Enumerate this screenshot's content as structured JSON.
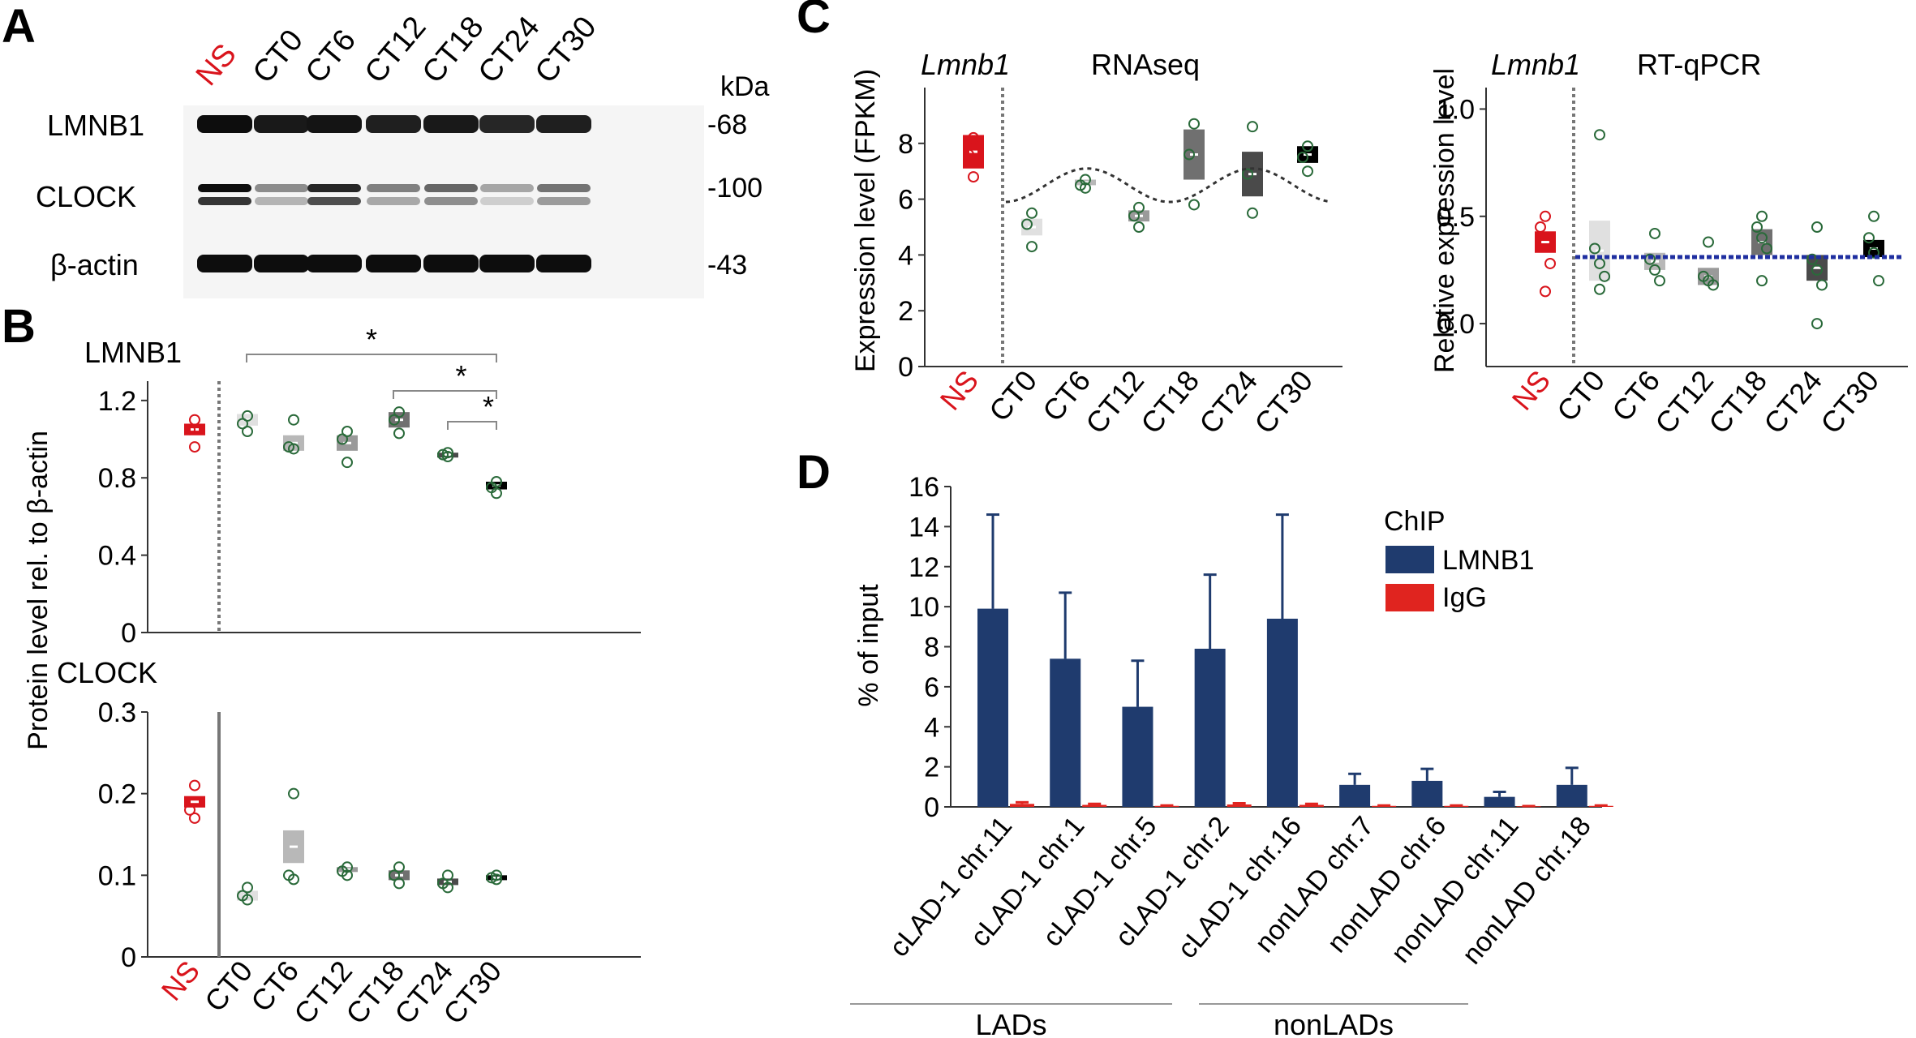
{
  "panels": {
    "A": "A",
    "B": "B",
    "C": "C",
    "D": "D"
  },
  "colors": {
    "ns_red": "#d9141c",
    "navy": "#1f3b6e",
    "igg_red": "#e0241f",
    "blue_dotted": "#1f2fa0",
    "axis": "#333333"
  },
  "western": {
    "lanes": [
      "NS",
      "CT0",
      "CT6",
      "CT12",
      "CT18",
      "CT24",
      "CT30"
    ],
    "unit_label": "kDa",
    "rows": [
      {
        "name": "LMNB1",
        "kda": "-68",
        "intensity": [
          0.95,
          0.9,
          0.92,
          0.88,
          0.9,
          0.85,
          0.88
        ]
      },
      {
        "name": "CLOCK",
        "kda": "-100",
        "intensity": [
          0.95,
          0.45,
          0.85,
          0.5,
          0.6,
          0.35,
          0.55
        ]
      },
      {
        "name": "β-actin",
        "kda": "-43",
        "intensity": [
          0.95,
          0.95,
          0.95,
          0.95,
          0.95,
          0.95,
          0.95
        ]
      }
    ]
  },
  "shared_y_label": "Protein level rel. to β-actin",
  "chart_data": [
    {
      "id": "B-top",
      "type": "bar",
      "title": "LMNB1",
      "categories": [
        "NS",
        "CT0",
        "CT6",
        "CT12",
        "CT18",
        "CT24",
        "CT30"
      ],
      "values": [
        1.05,
        1.1,
        0.98,
        0.98,
        1.1,
        0.92,
        0.76
      ],
      "errors": [
        0.03,
        0.03,
        0.04,
        0.04,
        0.04,
        0.01,
        0.02
      ],
      "points": [
        [
          1.1,
          1.05,
          0.96
        ],
        [
          1.12,
          1.08,
          1.04
        ],
        [
          1.1,
          0.96,
          0.95
        ],
        [
          1.04,
          1.0,
          0.88
        ],
        [
          1.14,
          1.1,
          1.03
        ],
        [
          0.93,
          0.92,
          0.91
        ],
        [
          0.78,
          0.75,
          0.72
        ]
      ],
      "yticks": [
        "0",
        "0.4",
        "0.8",
        "1.2"
      ],
      "ylim": [
        0,
        1.3
      ],
      "annotations": [
        "*",
        "*",
        "*"
      ]
    },
    {
      "id": "B-bottom",
      "type": "bar",
      "title": "CLOCK",
      "categories": [
        "NS",
        "CT0",
        "CT6",
        "CT12",
        "CT18",
        "CT24",
        "CT30"
      ],
      "values": [
        0.19,
        0.075,
        0.135,
        0.107,
        0.1,
        0.092,
        0.097
      ],
      "errors": [
        0.007,
        0.006,
        0.02,
        0.003,
        0.006,
        0.004,
        0.003
      ],
      "points": [
        [
          0.21,
          0.18,
          0.17
        ],
        [
          0.085,
          0.075,
          0.07
        ],
        [
          0.2,
          0.1,
          0.095
        ],
        [
          0.11,
          0.105,
          0.1
        ],
        [
          0.11,
          0.1,
          0.09
        ],
        [
          0.1,
          0.09,
          0.085
        ],
        [
          0.1,
          0.097,
          0.095
        ]
      ],
      "yticks": [
        "0",
        "0.1",
        "0.2",
        "0.3"
      ],
      "ylim": [
        0,
        0.3
      ]
    },
    {
      "id": "C-left",
      "type": "bar",
      "gene": "Lmnb1",
      "method": "RNAseq",
      "ylabel": "Expression level (FPKM)",
      "categories": [
        "NS",
        "CT0",
        "CT6",
        "CT12",
        "CT18",
        "CT24",
        "CT30"
      ],
      "values": [
        7.7,
        5.0,
        6.6,
        5.4,
        7.6,
        6.9,
        7.6
      ],
      "errors": [
        0.6,
        0.3,
        0.1,
        0.2,
        0.9,
        0.8,
        0.3
      ],
      "points": [
        [
          8.2,
          7.6,
          6.8
        ],
        [
          5.5,
          5.1,
          4.3
        ],
        [
          6.7,
          6.5,
          6.4
        ],
        [
          5.7,
          5.4,
          5.0
        ],
        [
          8.7,
          7.6,
          5.8
        ],
        [
          8.6,
          6.9,
          5.5
        ],
        [
          7.9,
          7.5,
          7.0
        ]
      ],
      "fit_curve": {
        "mean": 6.5,
        "amplitude": 0.6,
        "period_ct": 18
      },
      "yticks": [
        "0",
        "2",
        "4",
        "6",
        "8"
      ],
      "ylim": [
        0,
        10
      ]
    },
    {
      "id": "C-right",
      "type": "bar",
      "gene": "Lmnb1",
      "method": "RT-qPCR",
      "ylabel": "Relative expression level",
      "categories": [
        "NS",
        "CT0",
        "CT6",
        "CT12",
        "CT18",
        "CT24",
        "CT30"
      ],
      "values": [
        0.38,
        0.34,
        0.29,
        0.22,
        0.38,
        0.26,
        0.35
      ],
      "errors": [
        0.05,
        0.14,
        0.04,
        0.04,
        0.06,
        0.06,
        0.04
      ],
      "points": [
        [
          0.5,
          0.45,
          0.38,
          0.28,
          0.15
        ],
        [
          0.88,
          0.35,
          0.28,
          0.22,
          0.16
        ],
        [
          0.42,
          0.3,
          0.25,
          0.2
        ],
        [
          0.38,
          0.22,
          0.2,
          0.18
        ],
        [
          0.5,
          0.45,
          0.4,
          0.35,
          0.2
        ],
        [
          0.45,
          0.3,
          0.25,
          0.18,
          0.0
        ],
        [
          0.5,
          0.4,
          0.33,
          0.2
        ]
      ],
      "fit_line": 0.31,
      "yticks": [
        "0.0",
        "0.5",
        "1.0"
      ],
      "ylim": [
        -0.2,
        1.1
      ]
    },
    {
      "id": "D",
      "type": "bar",
      "ylabel": "% of input",
      "legend_title": "ChIP",
      "legend_position": "top-right",
      "categories": [
        "cLAD-1 chr.11",
        "cLAD-1 chr.1",
        "cLAD-1 chr.5",
        "cLAD-1 chr.2",
        "cLAD-1 chr.16",
        "nonLAD chr.7",
        "nonLAD chr.6",
        "nonLAD chr.11",
        "nonLAD chr.18"
      ],
      "series": [
        {
          "name": "LMNB1",
          "values": [
            9.9,
            7.4,
            5.0,
            7.9,
            9.4,
            1.1,
            1.3,
            0.5,
            1.1
          ],
          "errors": [
            4.7,
            3.3,
            2.3,
            3.7,
            5.2,
            0.55,
            0.6,
            0.25,
            0.85
          ]
        },
        {
          "name": "IgG",
          "values": [
            0.15,
            0.1,
            0.05,
            0.12,
            0.1,
            0.05,
            0.05,
            0.03,
            0.05
          ],
          "errors": [
            0.08,
            0.05,
            0.02,
            0.06,
            0.05,
            0.02,
            0.02,
            0.01,
            0.02
          ]
        }
      ],
      "yticks": [
        "0",
        "2",
        "4",
        "6",
        "8",
        "10",
        "12",
        "14",
        "16"
      ],
      "ylim": [
        0,
        16
      ],
      "groups": [
        {
          "label": "LADs",
          "span": [
            0,
            4
          ]
        },
        {
          "label": "nonLADs",
          "span": [
            5,
            8
          ]
        }
      ]
    }
  ]
}
